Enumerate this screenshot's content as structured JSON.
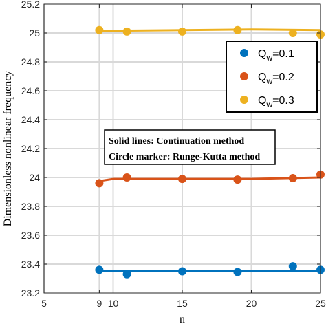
{
  "chart_data": {
    "type": "line",
    "xlabel": "n",
    "ylabel": "Dimensionless nonlinear frequency",
    "xlim": [
      5,
      25
    ],
    "ylim": [
      23.2,
      25.2
    ],
    "x_ticks": [
      5,
      9,
      10,
      15,
      20,
      25
    ],
    "y_ticks": [
      23.2,
      23.4,
      23.6,
      23.8,
      24.0,
      24.2,
      24.4,
      24.6,
      24.8,
      25.0,
      25.2
    ],
    "x_tick_labels": [
      "5",
      "9",
      "10",
      "15",
      "20",
      "25"
    ],
    "y_tick_labels": [
      "23.2",
      "23.4",
      "23.6",
      "23.8",
      "24",
      "24.2",
      "24.4",
      "24.6",
      "24.8",
      "25",
      "25.2"
    ],
    "grid": true,
    "legend_position": "top-right",
    "annotation_lines": [
      "Solid lines: Continuation method",
      "Circle marker: Runge-Kutta method"
    ],
    "series": [
      {
        "legend_main": "Q",
        "legend_sub": "w",
        "legend_value": "=0.1",
        "color": "#0072BD",
        "line_x": [
          9,
          25
        ],
        "line_y": [
          23.355,
          23.355
        ],
        "marker_x": [
          9,
          11,
          15,
          19,
          23,
          25
        ],
        "marker_y": [
          23.36,
          23.33,
          23.35,
          23.345,
          23.385,
          23.36
        ]
      },
      {
        "legend_main": "Q",
        "legend_sub": "w",
        "legend_value": "=0.2",
        "color": "#D95319",
        "line_x": [
          9,
          10,
          15,
          20,
          25
        ],
        "line_y": [
          23.975,
          23.99,
          23.99,
          23.99,
          24.0
        ],
        "marker_x": [
          9,
          11,
          15,
          19,
          23,
          25
        ],
        "marker_y": [
          23.96,
          24.0,
          23.99,
          23.985,
          23.995,
          24.02
        ]
      },
      {
        "legend_main": "Q",
        "legend_sub": "w",
        "legend_value": "=0.3",
        "color": "#EDB120",
        "line_x": [
          9,
          15,
          20,
          25
        ],
        "line_y": [
          25.015,
          25.02,
          25.025,
          25.02
        ],
        "marker_x": [
          9,
          11,
          15,
          19,
          23,
          25
        ],
        "marker_y": [
          25.02,
          25.01,
          25.01,
          25.02,
          25.0,
          24.99
        ]
      }
    ]
  }
}
